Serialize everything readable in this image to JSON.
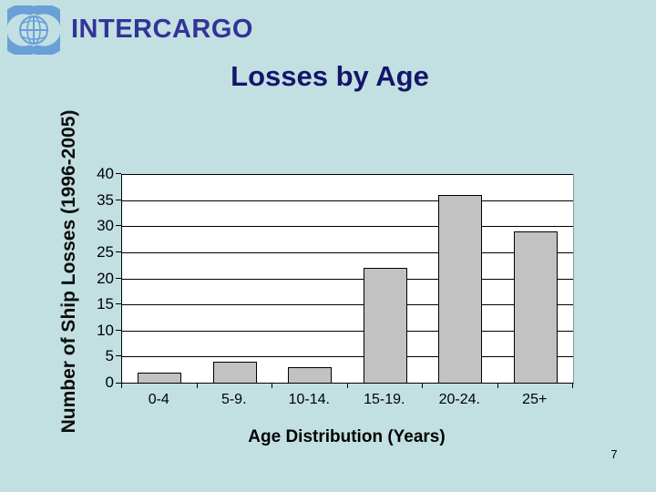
{
  "header": {
    "org": "INTERCARGO",
    "title": "Losses by Age"
  },
  "chart_data": {
    "type": "bar",
    "title": "Losses by Age",
    "categories": [
      "0-4",
      "5-9.",
      "10-14.",
      "15-19.",
      "20-24.",
      "25+"
    ],
    "values": [
      2,
      4,
      3,
      22,
      36,
      29
    ],
    "xlabel": "Age Distribution (Years)",
    "ylabel": "Number of Ship Losses (1996-2005)",
    "ylim": [
      0,
      40
    ],
    "yticks": [
      0,
      5,
      10,
      15,
      20,
      25,
      30,
      35,
      40
    ],
    "grid": true,
    "legend": false,
    "bar_color": "#c2c2c2",
    "bar_border_color": "#000000",
    "plot_bg": "#ffffff",
    "gridline_color": "#000000"
  },
  "colors": {
    "background": "#c2e0e2",
    "org_text": "#333399",
    "title_text": "#15156b",
    "axis_text": "#000000",
    "logo_blue": "#6aa0d8"
  },
  "footer": {
    "page_number": "7"
  }
}
